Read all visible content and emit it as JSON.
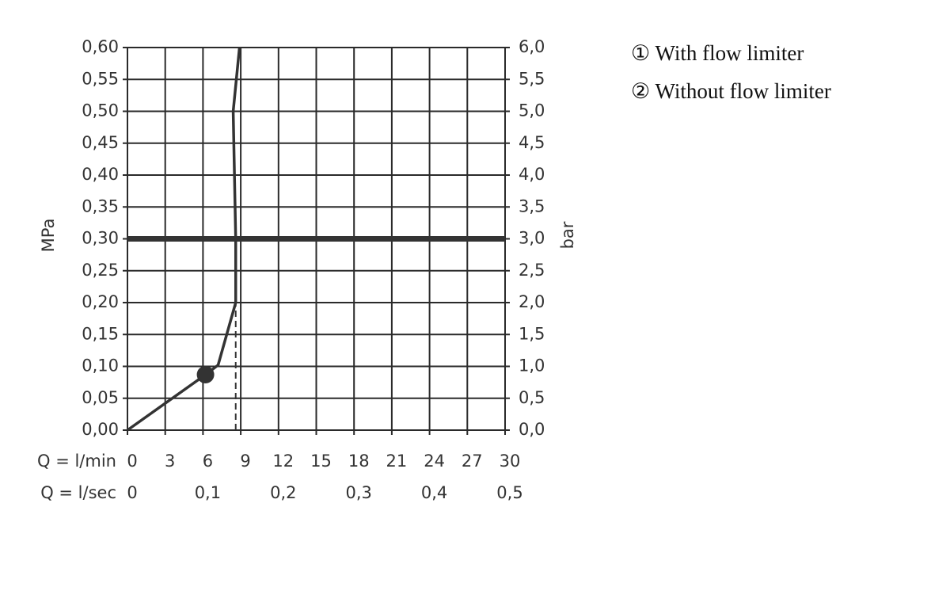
{
  "chart_data": {
    "type": "line",
    "xlim": [
      0,
      30
    ],
    "xticks": [
      0,
      3,
      6,
      9,
      12,
      15,
      18,
      21,
      24,
      27,
      30
    ],
    "x_row_label": "Q = l/min",
    "x2lim": [
      0,
      0.5
    ],
    "x2ticks": [
      0,
      {
        "value": 0.1,
        "label": "0,1"
      },
      {
        "value": 0.2,
        "label": "0,2"
      },
      {
        "value": 0.3,
        "label": "0,3"
      },
      {
        "value": 0.4,
        "label": "0,4"
      },
      {
        "value": 0.5,
        "label": "0,5"
      }
    ],
    "x2_row_label": "Q = l/sec",
    "ylim": [
      0,
      0.6
    ],
    "yticks": [
      {
        "value": 0,
        "label": "0,00"
      },
      {
        "value": 0.05,
        "label": "0,05"
      },
      {
        "value": 0.1,
        "label": "0,10"
      },
      {
        "value": 0.15,
        "label": "0,15"
      },
      {
        "value": 0.2,
        "label": "0,20"
      },
      {
        "value": 0.25,
        "label": "0,25"
      },
      {
        "value": 0.3,
        "label": "0,30"
      },
      {
        "value": 0.35,
        "label": "0,35"
      },
      {
        "value": 0.4,
        "label": "0,40"
      },
      {
        "value": 0.45,
        "label": "0,45"
      },
      {
        "value": 0.5,
        "label": "0,50"
      },
      {
        "value": 0.55,
        "label": "0,55"
      },
      {
        "value": 0.6,
        "label": "0,60"
      }
    ],
    "ylabel": "MPa",
    "y2lim": [
      0,
      6
    ],
    "y2ticks": [
      {
        "value": 0,
        "label": "0,0"
      },
      {
        "value": 0.5,
        "label": "0,5"
      },
      {
        "value": 1,
        "label": "1,0"
      },
      {
        "value": 1.5,
        "label": "1,5"
      },
      {
        "value": 2,
        "label": "2,0"
      },
      {
        "value": 2.5,
        "label": "2,5"
      },
      {
        "value": 3,
        "label": "3,0"
      },
      {
        "value": 3.5,
        "label": "3,5"
      },
      {
        "value": 4,
        "label": "4,0"
      },
      {
        "value": 4.5,
        "label": "4,5"
      },
      {
        "value": 5,
        "label": "5,0"
      },
      {
        "value": 5.5,
        "label": "5,5"
      },
      {
        "value": 6,
        "label": "6,0"
      }
    ],
    "y2label": "bar",
    "grid": true,
    "series": [
      {
        "color": "#333333",
        "style": "solid",
        "x": [
          0,
          6.2,
          7.2,
          8.6,
          8.6,
          8.4,
          8.9
        ],
        "values": [
          0,
          0.087,
          0.102,
          0.2,
          0.3,
          0.5,
          0.6
        ]
      },
      {
        "color": "#333333",
        "style": "dashed",
        "x": [
          8.6,
          8.6
        ],
        "values": [
          0,
          0.2
        ]
      }
    ],
    "points": [
      {
        "x": 6.2,
        "y": 0.087
      }
    ],
    "hlines": [
      0.3
    ],
    "legend": [
      "① With flow limiter",
      "② Without flow limiter"
    ]
  }
}
